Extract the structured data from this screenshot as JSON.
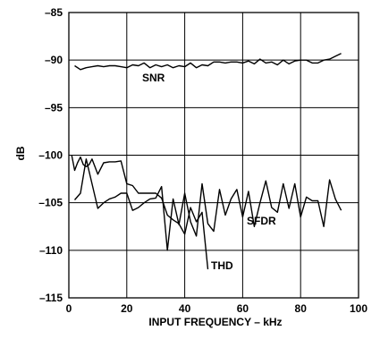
{
  "chart_data": {
    "type": "line",
    "xlabel": "INPUT FREQUENCY – kHz",
    "ylabel": "dB",
    "xlim": [
      0,
      100
    ],
    "ylim": [
      -115,
      -85
    ],
    "x_ticks": [
      "0",
      "20",
      "40",
      "60",
      "80",
      "100"
    ],
    "y_ticks": [
      "–85",
      "–90",
      "–95",
      "–100",
      "–105",
      "–110",
      "–115"
    ],
    "grid": true,
    "legend": "inline labels",
    "series": [
      {
        "name": "SNR",
        "x": [
          2,
          4,
          6,
          8,
          10,
          12,
          14,
          16,
          18,
          20,
          22,
          24,
          26,
          28,
          30,
          32,
          34,
          36,
          38,
          40,
          42,
          44,
          46,
          48,
          50,
          52,
          54,
          56,
          58,
          60,
          62,
          64,
          66,
          68,
          70,
          72,
          74,
          76,
          78,
          80,
          82,
          84,
          86,
          88,
          90,
          92,
          94
        ],
        "y": [
          -90.6,
          -91.0,
          -90.8,
          -90.7,
          -90.6,
          -90.7,
          -90.6,
          -90.6,
          -90.7,
          -90.8,
          -90.5,
          -90.6,
          -90.3,
          -90.8,
          -90.5,
          -90.7,
          -90.5,
          -90.8,
          -90.6,
          -90.7,
          -90.3,
          -90.8,
          -90.5,
          -90.6,
          -90.2,
          -90.2,
          -90.3,
          -90.2,
          -90.2,
          -90.3,
          -90.1,
          -90.4,
          -89.9,
          -90.3,
          -90.2,
          -90.5,
          -90.0,
          -90.4,
          -90.1,
          -90.0,
          -90.0,
          -90.3,
          -90.3,
          -90.0,
          -89.9,
          -89.6,
          -89.3
        ]
      },
      {
        "name": "SFDR",
        "x": [
          2,
          4,
          6,
          8,
          10,
          12,
          14,
          16,
          18,
          20,
          22,
          24,
          26,
          28,
          30,
          32,
          34,
          36,
          38,
          40,
          42,
          44,
          46,
          48,
          50,
          52,
          54,
          56,
          58,
          60,
          62,
          64,
          66,
          68,
          70,
          72,
          74,
          76,
          78,
          80,
          82,
          84,
          86,
          88,
          90,
          92,
          94
        ],
        "y": [
          -104.7,
          -104.0,
          -100.4,
          -103.0,
          -105.6,
          -105.0,
          -104.6,
          -104.4,
          -104.0,
          -104.0,
          -105.8,
          -105.5,
          -105.0,
          -104.6,
          -104.5,
          -103.3,
          -110.0,
          -104.6,
          -107.3,
          -104.0,
          -107.0,
          -108.5,
          -103.0,
          -107.2,
          -108.0,
          -103.6,
          -106.3,
          -104.6,
          -103.6,
          -106.5,
          -103.8,
          -107.5,
          -105.0,
          -102.7,
          -105.5,
          -106.0,
          -103.0,
          -105.6,
          -103.0,
          -106.5,
          -104.4,
          -104.8,
          -104.8,
          -107.5,
          -102.6,
          -104.6,
          -105.8
        ]
      },
      {
        "name": "THD",
        "x": [
          1,
          2,
          3,
          4,
          5,
          6,
          7,
          8,
          10,
          12,
          14,
          16,
          18,
          20,
          22,
          24,
          26,
          28,
          30,
          32,
          34,
          36,
          38,
          40,
          42,
          44,
          46,
          48
        ],
        "y": [
          -100.0,
          -101.6,
          -100.8,
          -100.2,
          -101.0,
          -101.2,
          -101.0,
          -100.4,
          -102.0,
          -100.8,
          -100.7,
          -100.7,
          -100.6,
          -103.0,
          -103.2,
          -104.0,
          -104.0,
          -104.0,
          -104.0,
          -104.5,
          -106.3,
          -106.8,
          -107.2,
          -108.3,
          -105.5,
          -107.0,
          -106.0,
          -112.0
        ]
      }
    ]
  }
}
